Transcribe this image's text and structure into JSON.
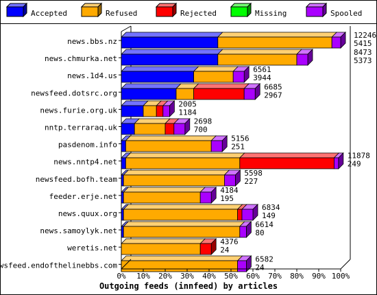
{
  "legend": [
    {
      "name": "Accepted",
      "color": "#0000ff"
    },
    {
      "name": "Refused",
      "color": "#ffaa00"
    },
    {
      "name": "Rejected",
      "color": "#ff0000"
    },
    {
      "name": "Missing",
      "color": "#00ff00"
    },
    {
      "name": "Spooled",
      "color": "#aa00ff"
    }
  ],
  "chart_data": {
    "type": "bar",
    "orientation": "horizontal",
    "stacked": true,
    "title": "Outgoing feeds (innfeed) by articles",
    "xlim": [
      0,
      100
    ],
    "x_ticks": [
      "0%",
      "10%",
      "20%",
      "30%",
      "40%",
      "50%",
      "60%",
      "70%",
      "80%",
      "90%",
      "100%"
    ],
    "grid": false,
    "legend_position": "top",
    "categories": [
      {
        "name": "news.bbs.nz",
        "total": "12246",
        "spooled": "5415",
        "percent": {
          "accepted": 44,
          "refused": 52,
          "rejected": 0,
          "missing": 0,
          "spooled": 4
        }
      },
      {
        "name": "news.chmurka.net",
        "total": "8473",
        "spooled": "5373",
        "percent": {
          "accepted": 44,
          "refused": 36,
          "rejected": 0,
          "missing": 0,
          "spooled": 5
        }
      },
      {
        "name": "news.1d4.us",
        "total": "6561",
        "spooled": "3944",
        "percent": {
          "accepted": 33,
          "refused": 18,
          "rejected": 0,
          "missing": 0,
          "spooled": 5
        }
      },
      {
        "name": "newsfeed.dotsrc.org",
        "total": "6685",
        "spooled": "2967",
        "percent": {
          "accepted": 25,
          "refused": 8,
          "rejected": 23,
          "missing": 0,
          "spooled": 5
        }
      },
      {
        "name": "news.furie.org.uk",
        "total": "2005",
        "spooled": "1184",
        "percent": {
          "accepted": 10,
          "refused": 6,
          "rejected": 3,
          "missing": 0,
          "spooled": 3
        }
      },
      {
        "name": "nntp.terraraq.uk",
        "total": "2698",
        "spooled": "700",
        "percent": {
          "accepted": 6,
          "refused": 14,
          "rejected": 4,
          "missing": 0,
          "spooled": 5
        }
      },
      {
        "name": "pasdenom.info",
        "total": "5156",
        "spooled": "251",
        "percent": {
          "accepted": 2,
          "refused": 39,
          "rejected": 0,
          "missing": 0,
          "spooled": 5
        }
      },
      {
        "name": "news.nntp4.net",
        "total": "11878",
        "spooled": "249",
        "percent": {
          "accepted": 2,
          "refused": 52,
          "rejected": 43,
          "missing": 0,
          "spooled": 2
        }
      },
      {
        "name": "newsfeed.bofh.team",
        "total": "5598",
        "spooled": "227",
        "percent": {
          "accepted": 1,
          "refused": 46,
          "rejected": 0,
          "missing": 0,
          "spooled": 5
        }
      },
      {
        "name": "feeder.erje.net",
        "total": "4184",
        "spooled": "195",
        "percent": {
          "accepted": 1,
          "refused": 35,
          "rejected": 0,
          "missing": 0,
          "spooled": 5
        }
      },
      {
        "name": "news.quux.org",
        "total": "6834",
        "spooled": "149",
        "percent": {
          "accepted": 1,
          "refused": 52,
          "rejected": 2,
          "missing": 0,
          "spooled": 5
        }
      },
      {
        "name": "news.samoylyk.net",
        "total": "6614",
        "spooled": "80",
        "percent": {
          "accepted": 1,
          "refused": 53,
          "rejected": 0,
          "missing": 0,
          "spooled": 3
        }
      },
      {
        "name": "weretis.net",
        "total": "4376",
        "spooled": "24",
        "percent": {
          "accepted": 0,
          "refused": 36,
          "rejected": 5,
          "missing": 0,
          "spooled": 0
        }
      },
      {
        "name": "newsfeed.endofthelinebbs.com",
        "total": "6582",
        "spooled": "24",
        "percent": {
          "accepted": 0,
          "refused": 53,
          "rejected": 0,
          "missing": 0,
          "spooled": 4
        }
      }
    ]
  }
}
